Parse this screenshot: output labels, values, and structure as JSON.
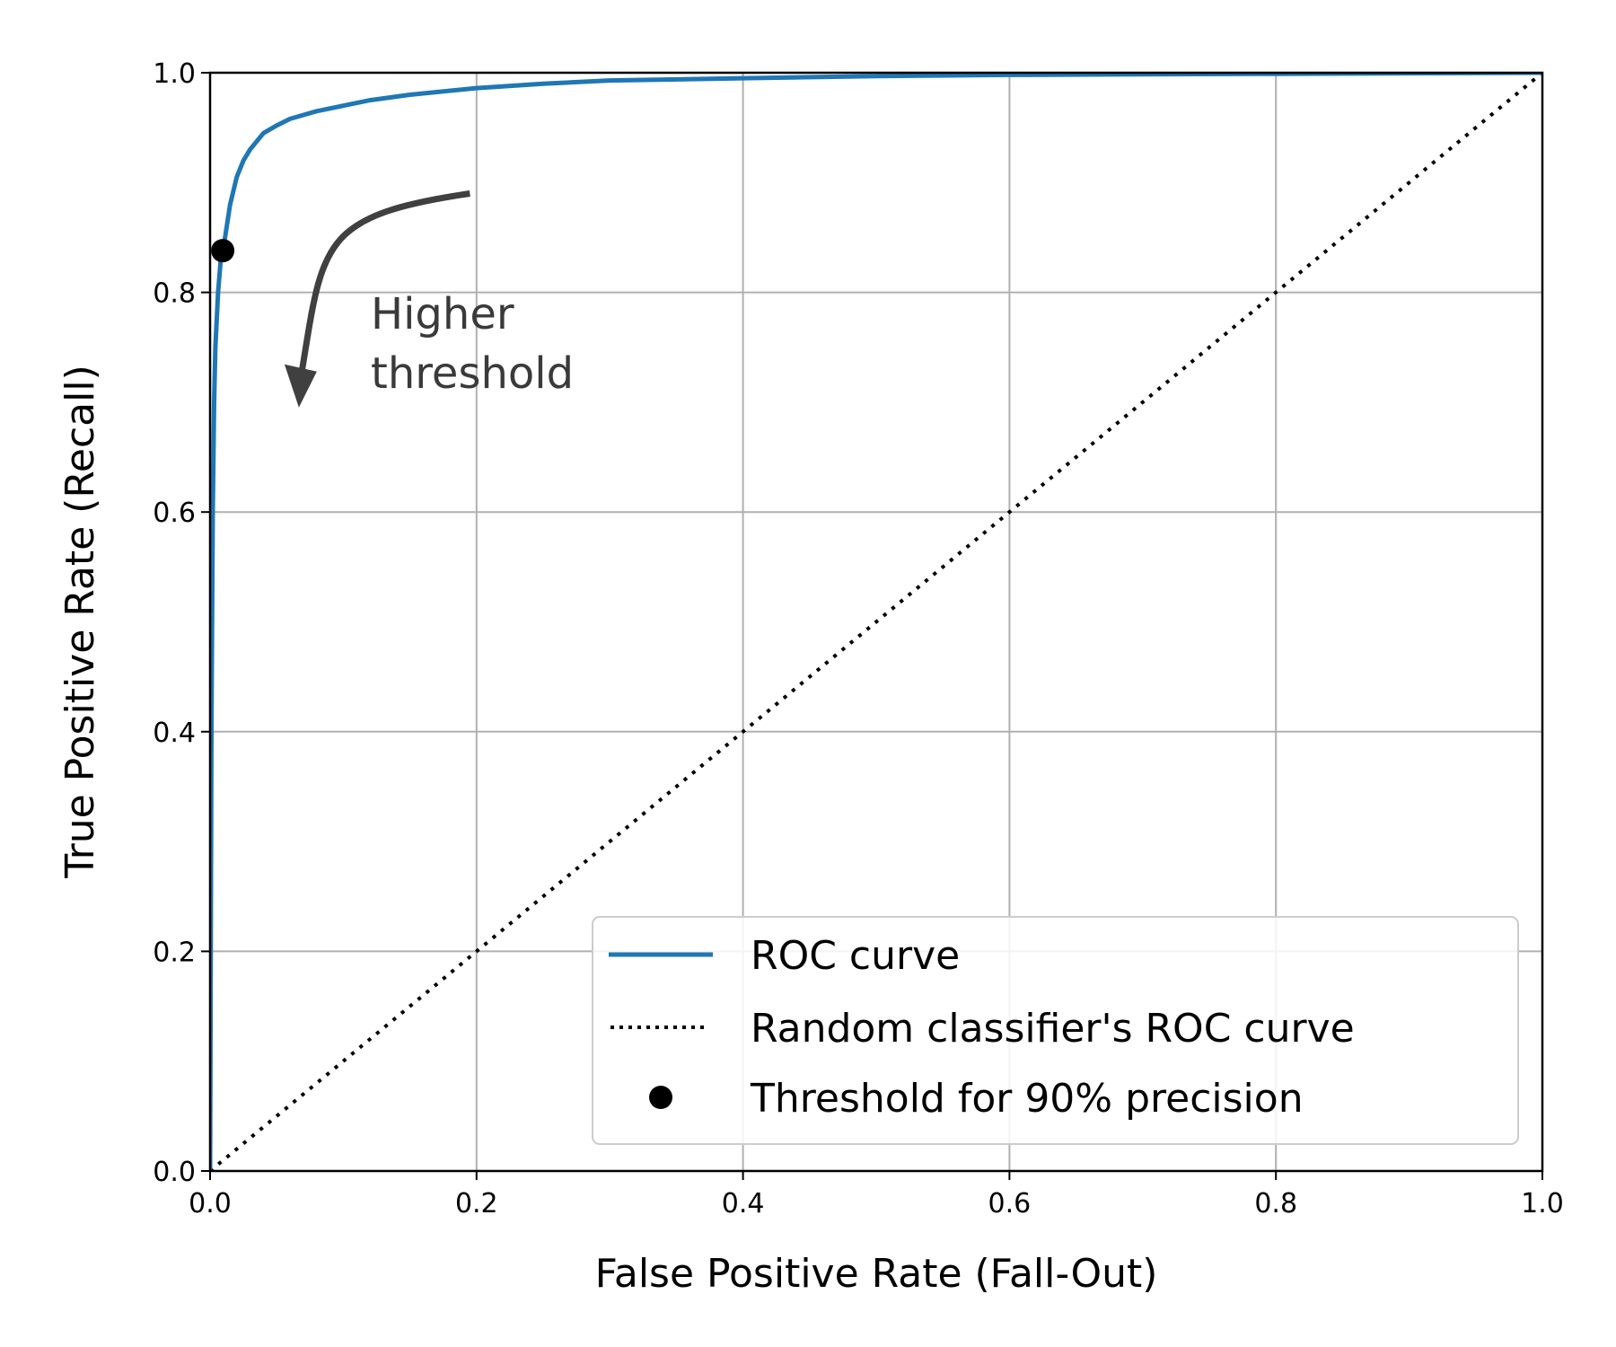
{
  "chart_data": {
    "type": "line",
    "title": "",
    "xlabel": "False Positive Rate (Fall-Out)",
    "ylabel": "True Positive Rate (Recall)",
    "xlim": [
      0.0,
      1.0
    ],
    "ylim": [
      0.0,
      1.0
    ],
    "xticks": [
      "0.0",
      "0.2",
      "0.4",
      "0.6",
      "0.8",
      "1.0"
    ],
    "yticks": [
      "0.0",
      "0.2",
      "0.4",
      "0.6",
      "0.8",
      "1.0"
    ],
    "grid": true,
    "legend_position": "bottom-right",
    "series": [
      {
        "name": "ROC curve",
        "style": "solid",
        "color": "#1f77b4",
        "x": [
          0.0,
          0.001,
          0.002,
          0.003,
          0.004,
          0.006,
          0.008,
          0.01,
          0.015,
          0.02,
          0.025,
          0.03,
          0.04,
          0.05,
          0.06,
          0.08,
          0.1,
          0.12,
          0.15,
          0.2,
          0.25,
          0.3,
          0.4,
          0.5,
          0.6,
          0.8,
          1.0
        ],
        "y": [
          0.0,
          0.4,
          0.6,
          0.7,
          0.75,
          0.8,
          0.83,
          0.84,
          0.88,
          0.905,
          0.92,
          0.93,
          0.945,
          0.952,
          0.958,
          0.965,
          0.97,
          0.975,
          0.98,
          0.986,
          0.99,
          0.993,
          0.995,
          0.997,
          0.998,
          0.999,
          1.0
        ]
      },
      {
        "name": "Random classifier's ROC curve",
        "style": "dotted",
        "color": "#000000",
        "x": [
          0.0,
          1.0
        ],
        "y": [
          0.0,
          1.0
        ]
      },
      {
        "name": "Threshold for 90% precision",
        "style": "marker",
        "color": "#000000",
        "x": [
          0.0095
        ],
        "y": [
          0.838
        ]
      }
    ],
    "annotations": [
      {
        "text_lines": [
          "Higher",
          "threshold"
        ],
        "arrow_from": [
          0.195,
          0.89
        ],
        "arrow_to": [
          0.068,
          0.705
        ]
      }
    ]
  }
}
